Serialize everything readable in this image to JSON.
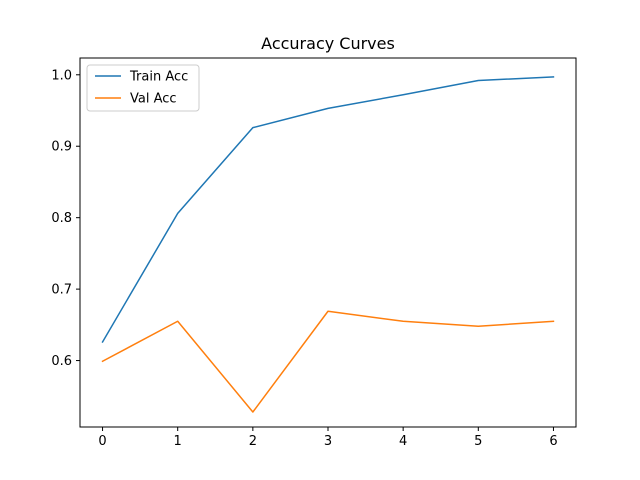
{
  "chart_data": {
    "type": "line",
    "title": "Accuracy Curves",
    "xlabel": "",
    "ylabel": "",
    "x": [
      0,
      1,
      2,
      3,
      4,
      5,
      6
    ],
    "xlim": [
      -0.3,
      6.3
    ],
    "ylim": [
      0.507,
      1.0235
    ],
    "x_ticks": [
      0,
      1,
      2,
      3,
      4,
      5,
      6
    ],
    "y_ticks": [
      0.6,
      0.7,
      0.8,
      0.9,
      1.0
    ],
    "grid": false,
    "legend_position": "top-left",
    "series": [
      {
        "name": "Train Acc",
        "color": "#1f77b4",
        "values": [
          0.626,
          0.806,
          0.926,
          0.953,
          0.972,
          0.992,
          0.997
        ]
      },
      {
        "name": "Val Acc",
        "color": "#ff7f0e",
        "values": [
          0.599,
          0.655,
          0.528,
          0.669,
          0.655,
          0.648,
          0.655
        ]
      }
    ]
  }
}
